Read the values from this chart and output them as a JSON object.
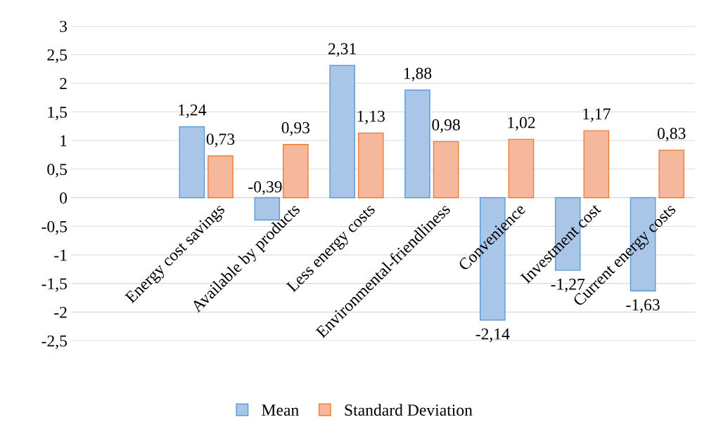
{
  "chart_data": {
    "type": "bar",
    "categories": [
      "Energy cost savings",
      "Available by products",
      "Less energy costs",
      "Environmental-friendliness",
      "Convenience",
      "Investment cost",
      "Current energy costs"
    ],
    "series": [
      {
        "name": "Mean",
        "color": "#a9c6e8",
        "values": [
          1.24,
          -0.39,
          2.31,
          1.88,
          -2.14,
          -1.27,
          -1.63
        ],
        "value_labels": [
          "1,24",
          "-0,39",
          "2,31",
          "1,88",
          "-2,14",
          "-1,27",
          "-1,63"
        ]
      },
      {
        "name": "Standard Deviation",
        "color": "#f6b89c",
        "values": [
          0.73,
          0.93,
          1.13,
          0.98,
          1.02,
          1.17,
          0.83
        ],
        "value_labels": [
          "0,73",
          "0,93",
          "1,13",
          "0,98",
          "1,02",
          "1,17",
          "0,83"
        ]
      }
    ],
    "ylim": [
      -2.5,
      3
    ],
    "yticks": [
      {
        "value": -2.5,
        "label": "-2,5"
      },
      -2,
      {
        "value": -1.5,
        "label": "-1,5"
      },
      -1,
      {
        "value": -0.5,
        "label": "-0,5"
      },
      0,
      {
        "value": 0.5,
        "label": "0,5"
      },
      1,
      {
        "value": 1.5,
        "label": "1,5"
      },
      2,
      {
        "value": 2.5,
        "label": "2,5"
      },
      3
    ],
    "grid": "y",
    "legend": "bottom"
  }
}
